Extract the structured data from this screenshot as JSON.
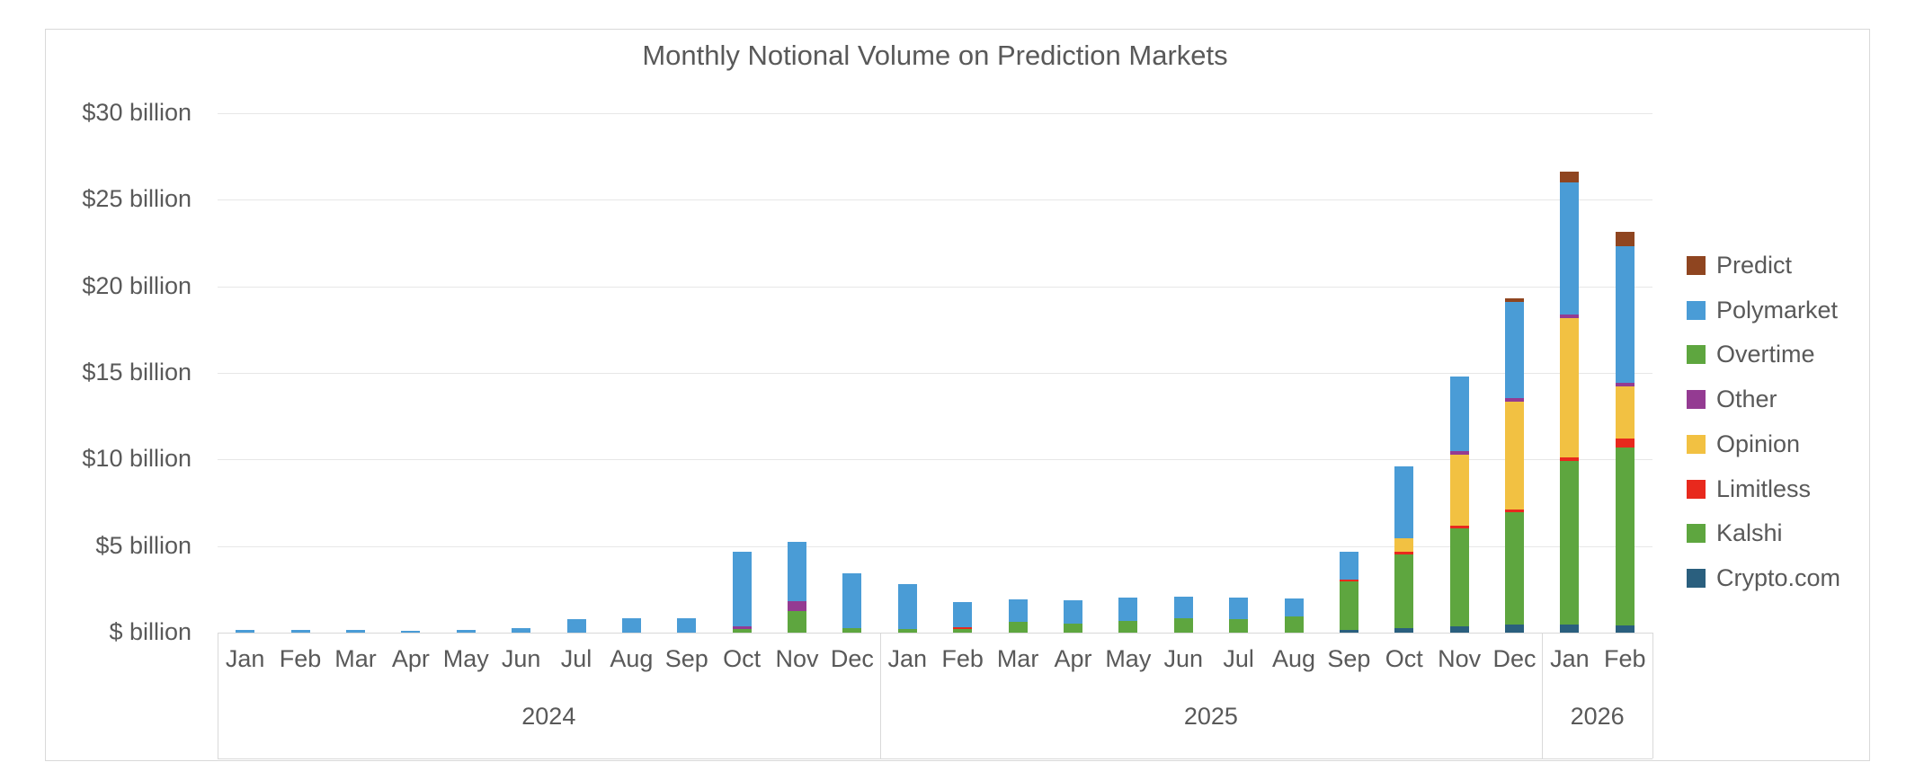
{
  "title": "Monthly Notional Volume on Prediction Markets",
  "chart_data": {
    "type": "bar",
    "stacked": true,
    "unit": "USD billions",
    "grid": true,
    "legend_position": "right",
    "ylim": [
      0,
      30
    ],
    "y_ticks": [
      {
        "value": 30,
        "label": "$30 billion"
      },
      {
        "value": 25,
        "label": "$25 billion"
      },
      {
        "value": 20,
        "label": "$20 billion"
      },
      {
        "value": 15,
        "label": "$15 billion"
      },
      {
        "value": 10,
        "label": "$10 billion"
      },
      {
        "value": 5,
        "label": "$5 billion"
      },
      {
        "value": 0,
        "label": "$ billion"
      }
    ],
    "categories": [
      "Jan",
      "Feb",
      "Mar",
      "Apr",
      "May",
      "Jun",
      "Jul",
      "Aug",
      "Sep",
      "Oct",
      "Nov",
      "Dec",
      "Jan",
      "Feb",
      "Mar",
      "Apr",
      "May",
      "Jun",
      "Jul",
      "Aug",
      "Sep",
      "Oct",
      "Nov",
      "Dec",
      "Jan",
      "Feb"
    ],
    "year_groups": [
      {
        "label": "2024",
        "month_count": 12
      },
      {
        "label": "2025",
        "month_count": 12
      },
      {
        "label": "2026",
        "month_count": 2
      }
    ],
    "series": [
      {
        "name": "Crypto.com",
        "color": "#2a5f7e",
        "values": [
          0,
          0,
          0,
          0,
          0,
          0,
          0,
          0,
          0,
          0,
          0,
          0,
          0,
          0,
          0,
          0,
          0,
          0,
          0,
          0,
          0.15,
          0.28,
          0.37,
          0.45,
          0.45,
          0.4
        ]
      },
      {
        "name": "Kalshi",
        "color": "#5ea63f",
        "values": [
          0,
          0,
          0,
          0,
          0,
          0,
          0,
          0,
          0,
          0.2,
          1.25,
          0.25,
          0.2,
          0.2,
          0.6,
          0.5,
          0.7,
          0.85,
          0.8,
          0.95,
          2.8,
          4.25,
          5.65,
          6.5,
          9.45,
          10.3
        ]
      },
      {
        "name": "Limitless",
        "color": "#e8291d",
        "values": [
          0,
          0,
          0,
          0,
          0,
          0,
          0,
          0,
          0,
          0,
          0,
          0,
          0,
          0.1,
          0,
          0,
          0,
          0,
          0,
          0,
          0.1,
          0.13,
          0.15,
          0.15,
          0.2,
          0.5
        ]
      },
      {
        "name": "Opinion",
        "color": "#f2c142",
        "values": [
          0,
          0,
          0,
          0,
          0,
          0,
          0,
          0,
          0,
          0,
          0,
          0,
          0,
          0,
          0,
          0,
          0,
          0,
          0,
          0,
          0,
          0.8,
          4.1,
          6.25,
          8.05,
          3.0
        ]
      },
      {
        "name": "Other",
        "color": "#943b92",
        "values": [
          0,
          0,
          0,
          0,
          0,
          0,
          0,
          0,
          0,
          0.15,
          0.55,
          0,
          0,
          0,
          0,
          0,
          0,
          0,
          0,
          0,
          0,
          0,
          0.2,
          0.2,
          0.22,
          0.22
        ]
      },
      {
        "name": "Overtime",
        "color": "#5ea63f",
        "values": [
          0,
          0,
          0,
          0,
          0,
          0,
          0,
          0,
          0,
          0,
          0,
          0,
          0,
          0,
          0,
          0,
          0,
          0,
          0,
          0,
          0,
          0,
          0,
          0,
          0,
          0
        ]
      },
      {
        "name": "Polymarket",
        "color": "#4a9cd6",
        "values": [
          0.14,
          0.14,
          0.17,
          0.12,
          0.15,
          0.26,
          0.76,
          0.84,
          0.84,
          4.3,
          3.45,
          3.2,
          2.6,
          1.45,
          1.3,
          1.35,
          1.3,
          1.25,
          1.2,
          1.0,
          1.6,
          4.15,
          4.33,
          5.55,
          7.65,
          7.9
        ]
      },
      {
        "name": "Predict",
        "color": "#8f4520",
        "values": [
          0,
          0,
          0,
          0,
          0,
          0,
          0,
          0,
          0,
          0,
          0,
          0,
          0,
          0,
          0,
          0,
          0,
          0,
          0,
          0,
          0,
          0,
          0,
          0.2,
          0.6,
          0.8
        ]
      }
    ],
    "legend_order": [
      "Predict",
      "Polymarket",
      "Overtime",
      "Other",
      "Opinion",
      "Limitless",
      "Kalshi",
      "Crypto.com"
    ]
  },
  "colors": {
    "text": "#595959",
    "gridline": "#e7e7e7",
    "axis_border": "#d9d9d9",
    "background": "#ffffff"
  }
}
